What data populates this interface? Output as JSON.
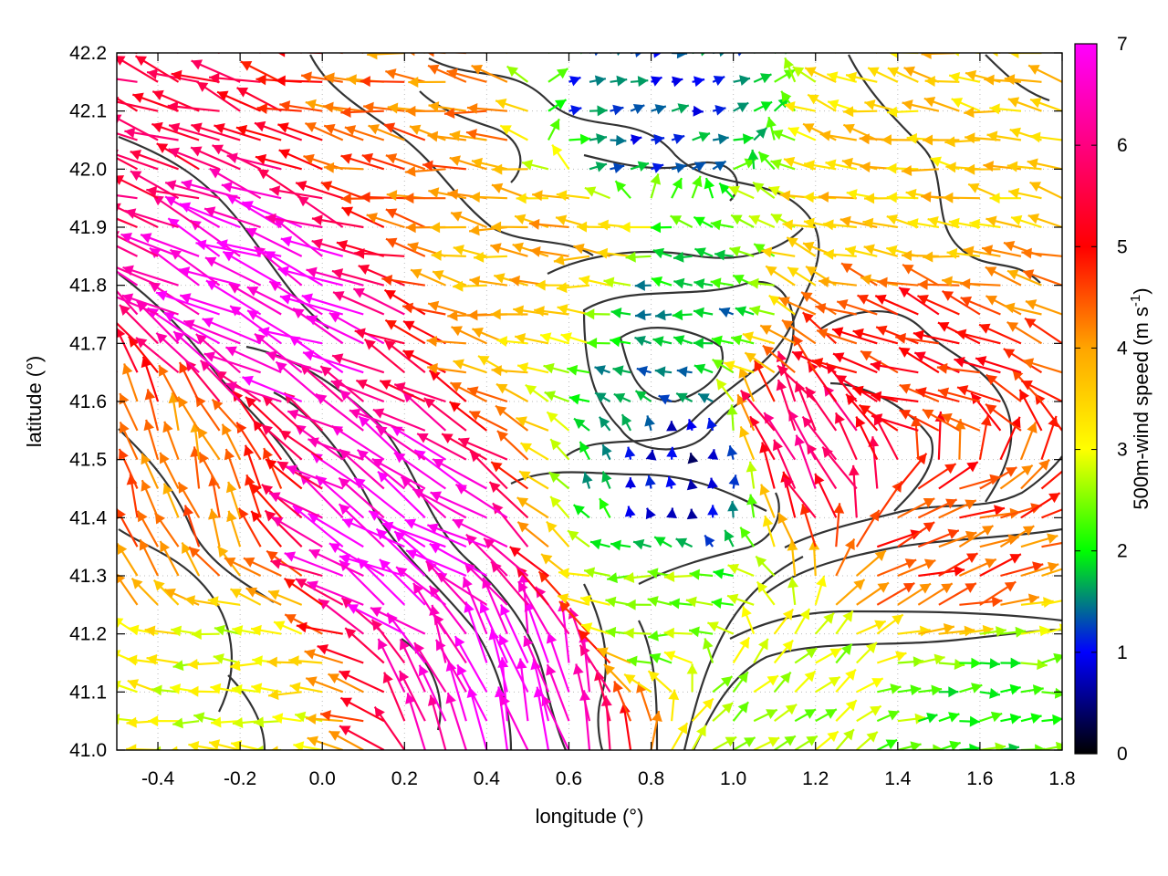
{
  "chart_data": {
    "type": "vector_field",
    "xlabel": "longitude (°)",
    "ylabel": "latitude (°)",
    "xlim": [
      -0.5,
      1.8
    ],
    "ylim": [
      41.0,
      42.2
    ],
    "xticks": [
      "-0.4",
      "-0.2",
      "0.0",
      "0.2",
      "0.4",
      "0.6",
      "0.8",
      "1.0",
      "1.2",
      "1.4",
      "1.6",
      "1.8"
    ],
    "yticks": [
      "41.0",
      "41.1",
      "41.2",
      "41.3",
      "41.4",
      "41.5",
      "41.6",
      "41.7",
      "41.8",
      "41.9",
      "42.0",
      "42.1",
      "42.2"
    ],
    "grid": "dotted",
    "colorbar": {
      "label_main": "500m-wind speed (m s",
      "label_sup": "-1",
      "label_end": ")",
      "range": [
        0,
        7
      ],
      "ticks": [
        "0",
        "1",
        "2",
        "3",
        "4",
        "5",
        "6",
        "7"
      ],
      "colors": [
        "#000000",
        "#0000ff",
        "#00ff00",
        "#ffff00",
        "#ffa500",
        "#ff0000",
        "#ff00ff"
      ]
    },
    "contours": "terrain elevation contours (dark grey)",
    "wind_regions": [
      {
        "lon": -0.45,
        "lat": 42.1,
        "speed": 5.6,
        "dir_deg": 160
      },
      {
        "lon": -0.1,
        "lat": 41.75,
        "speed": 7.0,
        "dir_deg": 155
      },
      {
        "lon": 0.25,
        "lat": 41.35,
        "speed": 7.0,
        "dir_deg": 150
      },
      {
        "lon": 0.5,
        "lat": 41.1,
        "speed": 6.8,
        "dir_deg": 105
      },
      {
        "lon": -0.35,
        "lat": 41.45,
        "speed": 4.3,
        "dir_deg": 110
      },
      {
        "lon": -0.2,
        "lat": 41.1,
        "speed": 3.0,
        "dir_deg": 175
      },
      {
        "lon": 0.3,
        "lat": 42.05,
        "speed": 4.3,
        "dir_deg": 170
      },
      {
        "lon": 0.75,
        "lat": 42.1,
        "speed": 1.2,
        "dir_deg": 10
      },
      {
        "lon": 0.85,
        "lat": 41.72,
        "speed": 1.6,
        "dir_deg": 175
      },
      {
        "lon": 0.9,
        "lat": 41.45,
        "speed": 0.6,
        "dir_deg": 90
      },
      {
        "lon": 0.85,
        "lat": 41.27,
        "speed": 2.4,
        "dir_deg": 180
      },
      {
        "lon": 1.1,
        "lat": 41.05,
        "speed": 2.7,
        "dir_deg": 40
      },
      {
        "lon": 1.6,
        "lat": 41.07,
        "speed": 2.2,
        "dir_deg": 5
      },
      {
        "lon": 1.45,
        "lat": 41.65,
        "speed": 4.8,
        "dir_deg": 160
      },
      {
        "lon": 1.5,
        "lat": 41.95,
        "speed": 3.6,
        "dir_deg": 170
      },
      {
        "lon": 1.5,
        "lat": 41.35,
        "speed": 4.6,
        "dir_deg": 20
      },
      {
        "lon": 1.2,
        "lat": 41.5,
        "speed": 5.8,
        "dir_deg": 120
      },
      {
        "lon": 0.6,
        "lat": 41.85,
        "speed": 3.8,
        "dir_deg": 175
      }
    ]
  }
}
